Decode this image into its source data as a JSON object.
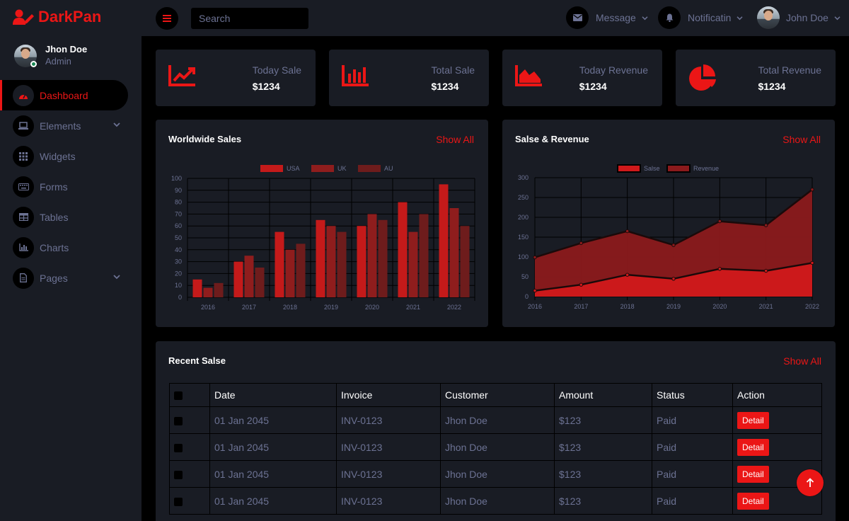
{
  "brand": {
    "name": "DarkPan"
  },
  "profile": {
    "name": "Jhon Doe",
    "role": "Admin"
  },
  "sidebar": {
    "items": [
      {
        "label": "Dashboard",
        "icon": "gauge-icon",
        "active": true
      },
      {
        "label": "Elements",
        "icon": "laptop-icon",
        "dropdown": true
      },
      {
        "label": "Widgets",
        "icon": "grid-icon"
      },
      {
        "label": "Forms",
        "icon": "keyboard-icon"
      },
      {
        "label": "Tables",
        "icon": "table-icon"
      },
      {
        "label": "Charts",
        "icon": "chart-icon"
      },
      {
        "label": "Pages",
        "icon": "file-icon",
        "dropdown": true
      }
    ]
  },
  "topbar": {
    "search_placeholder": "Search",
    "message_label": "Message",
    "notification_label": "Notificatin",
    "user_label": "John Doe"
  },
  "stats": [
    {
      "label": "Today Sale",
      "value": "$1234",
      "icon": "line-chart-icon"
    },
    {
      "label": "Total Sale",
      "value": "$1234",
      "icon": "bar-chart-icon"
    },
    {
      "label": "Today Revenue",
      "value": "$1234",
      "icon": "area-chart-icon"
    },
    {
      "label": "Total Revenue",
      "value": "$1234",
      "icon": "pie-chart-icon"
    }
  ],
  "worldwide": {
    "title": "Worldwide Sales",
    "link": "Show All"
  },
  "revenue": {
    "title": "Salse & Revenue",
    "link": "Show All"
  },
  "recent": {
    "title": "Recent Salse",
    "link": "Show All",
    "columns": [
      "Date",
      "Invoice",
      "Customer",
      "Amount",
      "Status",
      "Action"
    ],
    "rows": [
      {
        "date": "01 Jan 2045",
        "invoice": "INV-0123",
        "customer": "Jhon Doe",
        "amount": "$123",
        "status": "Paid",
        "action": "Detail"
      },
      {
        "date": "01 Jan 2045",
        "invoice": "INV-0123",
        "customer": "Jhon Doe",
        "amount": "$123",
        "status": "Paid",
        "action": "Detail"
      },
      {
        "date": "01 Jan 2045",
        "invoice": "INV-0123",
        "customer": "Jhon Doe",
        "amount": "$123",
        "status": "Paid",
        "action": "Detail"
      },
      {
        "date": "01 Jan 2045",
        "invoice": "INV-0123",
        "customer": "Jhon Doe",
        "amount": "$123",
        "status": "Paid",
        "action": "Detail"
      }
    ]
  },
  "colors": {
    "accent": "#eb1616",
    "panel": "#191c24",
    "background": "#000000",
    "muted": "#6c7293"
  },
  "chart_data": [
    {
      "type": "bar",
      "categories": [
        "2016",
        "2017",
        "2018",
        "2019",
        "2020",
        "2021",
        "2022"
      ],
      "series": [
        {
          "name": "USA",
          "values": [
            15,
            30,
            55,
            65,
            60,
            80,
            95
          ],
          "color": "#c41a1a"
        },
        {
          "name": "UK",
          "values": [
            8,
            35,
            40,
            60,
            70,
            55,
            75
          ],
          "color": "#8f1d1d"
        },
        {
          "name": "AU",
          "values": [
            12,
            25,
            45,
            55,
            65,
            70,
            60
          ],
          "color": "#6e1c1c"
        }
      ],
      "ylim": [
        0,
        100
      ],
      "yticks": [
        0,
        10,
        20,
        30,
        40,
        50,
        60,
        70,
        80,
        90,
        100
      ],
      "grid": true,
      "legend": "top"
    },
    {
      "type": "area",
      "x": [
        "2016",
        "2017",
        "2018",
        "2019",
        "2020",
        "2021",
        "2022"
      ],
      "series": [
        {
          "name": "Salse",
          "values": [
            15,
            30,
            55,
            45,
            70,
            65,
            85
          ],
          "color": "#d0191b"
        },
        {
          "name": "Revenue",
          "values": [
            99,
            135,
            165,
            130,
            190,
            180,
            270
          ],
          "color": "#8b1a1c"
        }
      ],
      "ylim": [
        0,
        300
      ],
      "yticks": [
        0,
        50,
        100,
        150,
        200,
        250,
        300
      ],
      "grid": true,
      "legend": "top"
    }
  ]
}
